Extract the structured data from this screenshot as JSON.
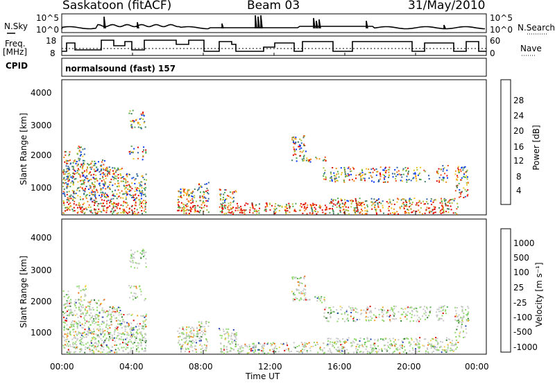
{
  "header": {
    "station": "Saskatoon (fitACF)",
    "beam": "Beam 03",
    "date": "31/May/2010"
  },
  "panel_labels": {
    "nsky": "N.Sky",
    "freq": "Freq.",
    "freq_unit": "[MHz]",
    "cpid": "CPID",
    "nsearch": "N.Search",
    "nave": "Nave",
    "cpid_value": "normalsound (fast) 157"
  },
  "noise_axis": {
    "left_top": "10^5",
    "left_bottom": "10^0",
    "right_top": "10^5",
    "right_bottom": "10^0"
  },
  "freq_axis": {
    "left_ticks": [
      "18",
      "8"
    ],
    "right_ticks": [
      "60",
      "0"
    ]
  },
  "chart_data": [
    {
      "type": "heatmap",
      "name": "power",
      "ylabel": "Slant Range [km]",
      "yticks": [
        "1000",
        "2000",
        "3000",
        "4000"
      ],
      "ylim": [
        180,
        4500
      ],
      "colorbar_label": "Power [dB]",
      "colorbar_ticks": [
        "4",
        "8",
        "12",
        "16",
        "20",
        "24",
        "28"
      ],
      "colorbar_colors": [
        "#0033ff",
        "#2a5fa8",
        "#3f7f5f",
        "#49a84a",
        "#a8c23a",
        "#f2c21a",
        "#f28a1a",
        "#ee4a16",
        "#e00000"
      ]
    },
    {
      "type": "heatmap",
      "name": "velocity",
      "ylabel": "Slant Range [km]",
      "yticks": [
        "1000",
        "2000",
        "3000",
        "4000"
      ],
      "ylim": [
        180,
        4500
      ],
      "colorbar_label": "Velocity [m s⁻¹]",
      "colorbar_ticks": [
        "1000",
        "500",
        "100",
        "25",
        "-25",
        "-100",
        "-500",
        "-1000"
      ],
      "colorbar_colors": [
        "#1e3fb0",
        "#2f7a2f",
        "#4fb04f",
        "#8fd86a",
        "#c8c8c8",
        "#f6d24a",
        "#f0a020",
        "#f06a10",
        "#e00000"
      ]
    }
  ],
  "x_axis": {
    "ticks": [
      "00:00",
      "04:00",
      "08:00",
      "12:00",
      "16:00",
      "20:00",
      "00:00"
    ],
    "label": "Time UT"
  }
}
